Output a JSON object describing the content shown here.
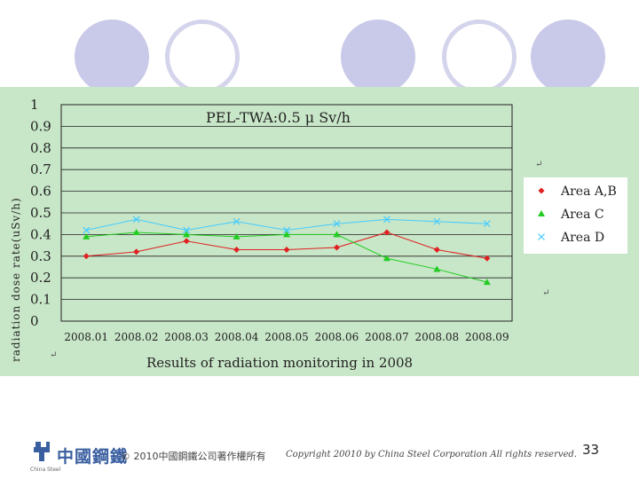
{
  "footer": {
    "logo_text": "中國鋼鐵",
    "logo_sub": "China Steel",
    "copyright_cn": "© 2010中國鋼鐵公司著作權所有",
    "copyright_en": "Copyright 20010 by China Steel Corporation All rights reserved.",
    "page_number": "33"
  },
  "colors": {
    "panel_bg": "#c8e6c8",
    "area_ab": "#e02020",
    "area_c": "#22cc22",
    "area_d": "#44ccff",
    "logo": "#3a5fa0"
  },
  "chart_data": {
    "type": "line",
    "title": "PEL-TWA:0.5 μ Sv/h",
    "subtitle": "Results of radiation monitoring in 2008",
    "xlabel": "",
    "ylabel": "radiation dose rate(uSv/h)",
    "ylim": [
      0,
      1
    ],
    "yticks": [
      "0",
      "0.1",
      "0.2",
      "0.3",
      "0.4",
      "0.5",
      "0.6",
      "0.7",
      "0.8",
      "0.9",
      "1"
    ],
    "grid": true,
    "legend_position": "right",
    "categories": [
      "2008.01",
      "2008.02",
      "2008.03",
      "2008.04",
      "2008.05",
      "2008.06",
      "2008.07",
      "2008.08",
      "2008.09"
    ],
    "series": [
      {
        "name": "Area A,B",
        "marker": "diamond",
        "color": "#e02020",
        "values": [
          0.3,
          0.32,
          0.37,
          0.33,
          0.33,
          0.34,
          0.41,
          0.33,
          0.29
        ]
      },
      {
        "name": "Area C",
        "marker": "triangle",
        "color": "#22cc22",
        "values": [
          0.39,
          0.41,
          0.4,
          0.39,
          0.4,
          0.4,
          0.29,
          0.24,
          0.18
        ]
      },
      {
        "name": "Area D",
        "marker": "x",
        "color": "#44ccff",
        "values": [
          0.42,
          0.47,
          0.42,
          0.46,
          0.42,
          0.45,
          0.47,
          0.46,
          0.45
        ]
      }
    ]
  }
}
